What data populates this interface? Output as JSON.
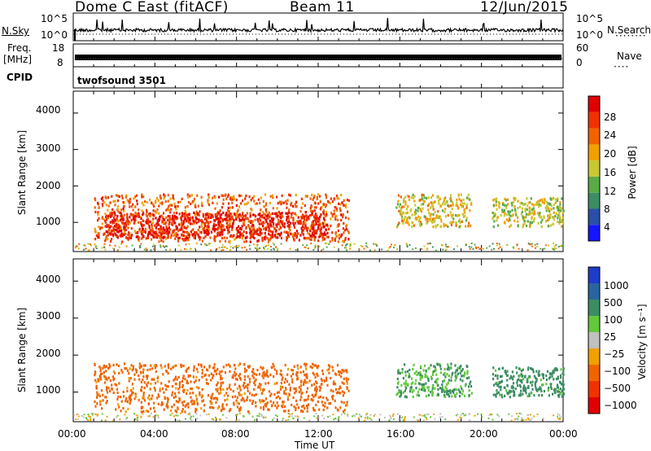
{
  "header": {
    "station": "Dome C East (fitACF)",
    "beam": "Beam 11",
    "date": "12/Jun/2015"
  },
  "top_panels": {
    "nsky_label": "N.Sky",
    "nsky_ticks": [
      "10^5",
      "10^0"
    ],
    "nsearch_label": "N.Search",
    "nsearch_ticks": [
      "10^5",
      "10^0"
    ],
    "freq_label": "Freq.",
    "freq_unit": "[MHz]",
    "freq_ticks": [
      "18",
      "8"
    ],
    "nave_label": "Nave",
    "nave_ticks": [
      "60",
      "0"
    ],
    "cpid_label": "CPID",
    "cpid_value": "twofsound 3501"
  },
  "colors": {
    "power": [
      "#1414ff",
      "#2a4fa8",
      "#3c8c64",
      "#5aaa46",
      "#c8c832",
      "#f0a000",
      "#f06400",
      "#f03200",
      "#e00000"
    ],
    "velocity": [
      "#e00000",
      "#f03200",
      "#f06400",
      "#f0a000",
      "#c0c0c0",
      "#64c83c",
      "#3c8c64",
      "#2a64a0",
      "#1e3cc8"
    ]
  },
  "chart_data": [
    {
      "type": "heatmap",
      "name": "power",
      "ylabel": "Slant Range [km]",
      "yticks": [
        "4000",
        "3000",
        "2000",
        "1000"
      ],
      "ylim": [
        200,
        4600
      ],
      "colorbar_label": "Power [dB]",
      "colorbar_ticks": [
        "28",
        "24",
        "20",
        "16",
        "12",
        "8",
        "4"
      ],
      "colorbar_range": [
        0,
        32
      ],
      "regions": [
        {
          "t_start": 1.0,
          "t_end": 13.5,
          "r_start": 500,
          "r_end": 1800,
          "value": 24
        },
        {
          "t_start": 1.5,
          "t_end": 12.5,
          "r_start": 600,
          "r_end": 1300,
          "value": 29
        },
        {
          "t_start": 15.8,
          "t_end": 19.5,
          "r_start": 900,
          "r_end": 1800,
          "value": 18
        },
        {
          "t_start": 20.5,
          "t_end": 24.0,
          "r_start": 900,
          "r_end": 1700,
          "value": 16
        }
      ]
    },
    {
      "type": "heatmap",
      "name": "velocity",
      "ylabel": "Slant Range [km]",
      "yticks": [
        "4000",
        "3000",
        "2000",
        "1000"
      ],
      "ylim": [
        200,
        4600
      ],
      "colorbar_label": "Velocity [m s⁻¹]",
      "colorbar_ticks": [
        "1000",
        "500",
        "100",
        "25",
        "−25",
        "−100",
        "−500",
        "−1000"
      ],
      "regions": [
        {
          "t_start": 1.0,
          "t_end": 13.5,
          "r_start": 500,
          "r_end": 1800,
          "value": -150
        },
        {
          "t_start": 15.8,
          "t_end": 19.5,
          "r_start": 900,
          "r_end": 1800,
          "value": 100
        },
        {
          "t_start": 20.5,
          "t_end": 24.0,
          "r_start": 900,
          "r_end": 1700,
          "value": 150
        }
      ]
    }
  ],
  "time_axis": {
    "ticks": [
      "00:00",
      "04:00",
      "08:00",
      "12:00",
      "16:00",
      "20:00",
      "00:00"
    ],
    "label": "Time UT"
  }
}
